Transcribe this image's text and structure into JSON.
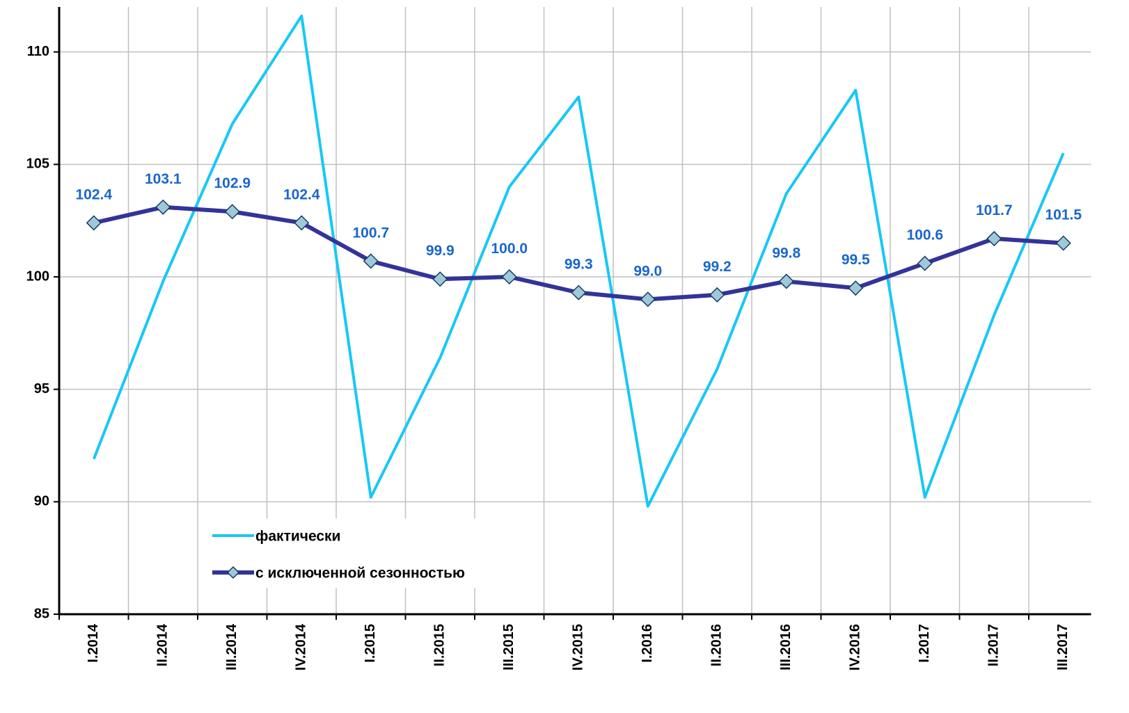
{
  "chart_data": {
    "type": "line",
    "categories": [
      "I.2014",
      "II.2014",
      "III.2014",
      "IV.2014",
      "I.2015",
      "II.2015",
      "III.2015",
      "IV.2015",
      "I.2016",
      "II.2016",
      "III.2016",
      "IV.2016",
      "I.2017",
      "II.2017",
      "III.2017"
    ],
    "series": [
      {
        "name": "фактически",
        "color": "#18c8f5",
        "values": [
          91.9,
          99.8,
          106.8,
          111.6,
          90.2,
          96.4,
          104.0,
          108.0,
          89.8,
          95.9,
          103.7,
          108.3,
          90.2,
          98.3,
          105.5
        ]
      },
      {
        "name": "с исключенной сезонностью",
        "color": "#333399",
        "marker_color": "#9cc9dc",
        "values": [
          102.4,
          103.1,
          102.9,
          102.4,
          100.7,
          99.9,
          100.0,
          99.3,
          99.0,
          99.2,
          99.8,
          99.5,
          100.6,
          101.7,
          101.5
        ],
        "value_labels": [
          "102.4",
          "103.1",
          "102.9",
          "102.4",
          "100.7",
          "99.9",
          "100.0",
          "99.3",
          "99.0",
          "99.2",
          "99.8",
          "99.5",
          "100.6",
          "101.7",
          "101.5"
        ]
      }
    ],
    "ylim": [
      85,
      112
    ],
    "yticks": [
      85,
      90,
      95,
      100,
      105,
      110
    ],
    "grid": true,
    "legend": "lower-left"
  }
}
